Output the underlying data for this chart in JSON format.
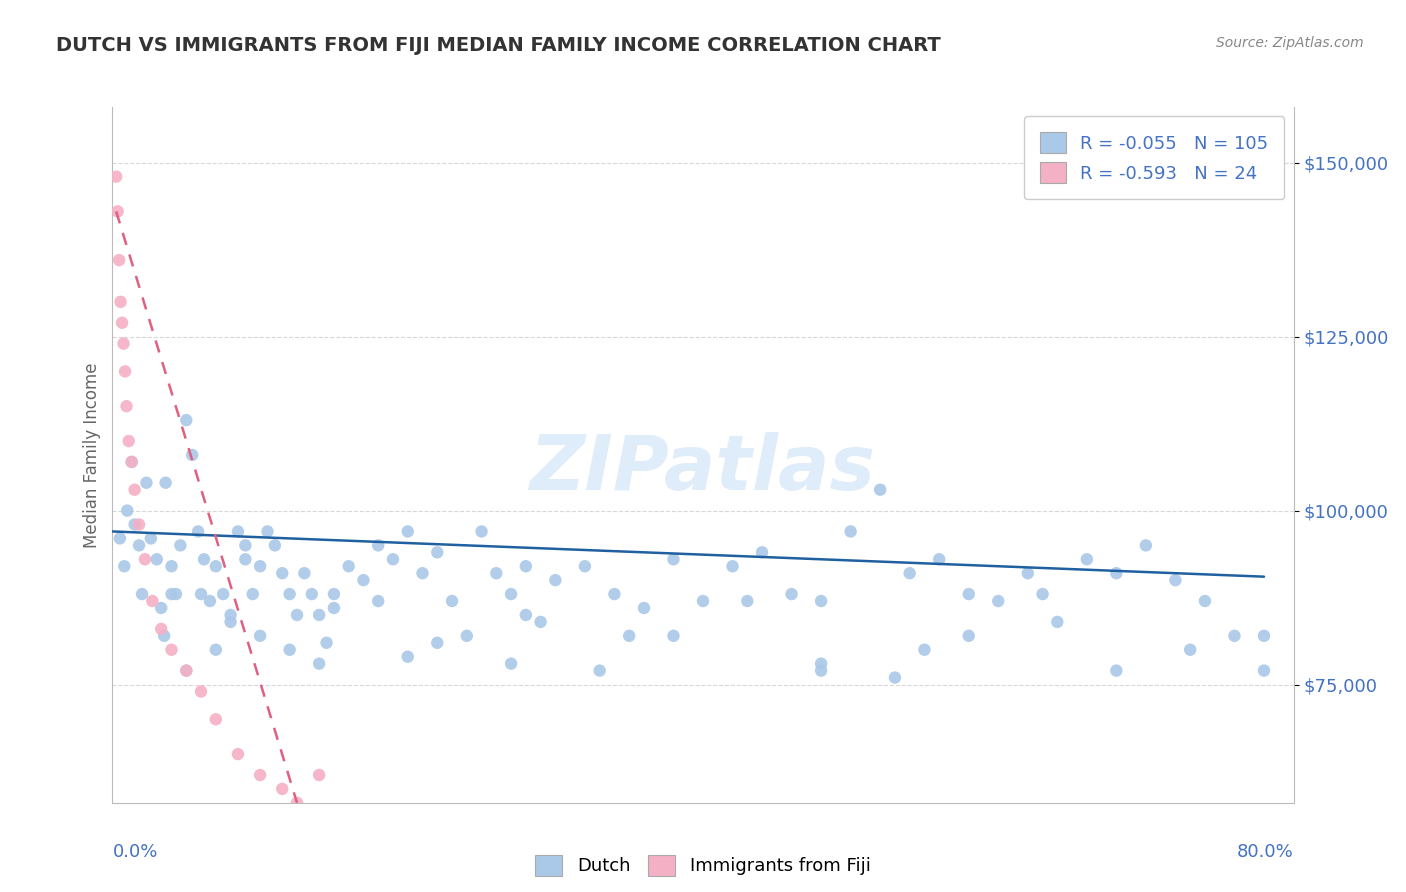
{
  "title": "DUTCH VS IMMIGRANTS FROM FIJI MEDIAN FAMILY INCOME CORRELATION CHART",
  "source": "Source: ZipAtlas.com",
  "ylabel": "Median Family Income",
  "watermark": "ZIPatlas",
  "xlim": [
    0.0,
    80.0
  ],
  "ylim": [
    58000,
    158000
  ],
  "yticks": [
    75000,
    100000,
    125000,
    150000
  ],
  "ytick_labels": [
    "$75,000",
    "$100,000",
    "$125,000",
    "$150,000"
  ],
  "dutch_color": "#aac8e8",
  "fiji_color": "#f4b0c4",
  "dutch_line_color": "#2060a0",
  "fiji_line_color": "#e06080",
  "legend_R1": "-0.055",
  "legend_N1": "105",
  "legend_R2": "-0.593",
  "legend_N2": "24",
  "background_color": "#ffffff",
  "grid_color": "#d8d8d8",
  "title_color": "#333333",
  "axis_label_color": "#666666",
  "tick_label_color": "#4472c4",
  "source_color": "#888888",
  "dutch_scatter_x": [
    0.5,
    0.8,
    1.0,
    1.3,
    1.5,
    1.8,
    2.0,
    2.3,
    2.6,
    3.0,
    3.3,
    3.6,
    4.0,
    4.3,
    4.6,
    5.0,
    5.4,
    5.8,
    6.2,
    6.6,
    7.0,
    7.5,
    8.0,
    8.5,
    9.0,
    9.5,
    10.0,
    10.5,
    11.0,
    11.5,
    12.0,
    12.5,
    13.0,
    13.5,
    14.0,
    14.5,
    15.0,
    16.0,
    17.0,
    18.0,
    19.0,
    20.0,
    21.0,
    22.0,
    23.0,
    24.0,
    25.0,
    26.0,
    27.0,
    28.0,
    29.0,
    30.0,
    32.0,
    34.0,
    36.0,
    38.0,
    40.0,
    42.0,
    44.0,
    46.0,
    48.0,
    50.0,
    52.0,
    54.0,
    56.0,
    58.0,
    60.0,
    62.0,
    64.0,
    66.0,
    68.0,
    70.0,
    72.0,
    74.0,
    76.0,
    78.0,
    3.5,
    6.0,
    9.0,
    12.0,
    15.0,
    18.0,
    22.0,
    27.0,
    33.0,
    38.0,
    43.0,
    48.0,
    53.0,
    58.0,
    63.0,
    68.0,
    73.0,
    78.0,
    4.0,
    8.0,
    55.0,
    48.0,
    35.0,
    28.0,
    20.0,
    14.0,
    10.0,
    7.0,
    5.0
  ],
  "dutch_scatter_y": [
    96000,
    92000,
    100000,
    107000,
    98000,
    95000,
    88000,
    104000,
    96000,
    93000,
    86000,
    104000,
    92000,
    88000,
    95000,
    113000,
    108000,
    97000,
    93000,
    87000,
    92000,
    88000,
    84000,
    97000,
    93000,
    88000,
    92000,
    97000,
    95000,
    91000,
    88000,
    85000,
    91000,
    88000,
    85000,
    81000,
    86000,
    92000,
    90000,
    87000,
    93000,
    97000,
    91000,
    94000,
    87000,
    82000,
    97000,
    91000,
    88000,
    92000,
    84000,
    90000,
    92000,
    88000,
    86000,
    93000,
    87000,
    92000,
    94000,
    88000,
    87000,
    97000,
    103000,
    91000,
    93000,
    88000,
    87000,
    91000,
    84000,
    93000,
    91000,
    95000,
    90000,
    87000,
    82000,
    77000,
    82000,
    88000,
    95000,
    80000,
    88000,
    95000,
    81000,
    78000,
    77000,
    82000,
    87000,
    78000,
    76000,
    82000,
    88000,
    77000,
    80000,
    82000,
    88000,
    85000,
    80000,
    77000,
    82000,
    85000,
    79000,
    78000,
    82000,
    80000,
    77000
  ],
  "fiji_scatter_x": [
    0.25,
    0.35,
    0.45,
    0.55,
    0.65,
    0.75,
    0.85,
    0.95,
    1.1,
    1.3,
    1.5,
    1.8,
    2.2,
    2.7,
    3.3,
    4.0,
    5.0,
    6.0,
    7.0,
    8.5,
    10.0,
    11.5,
    12.5,
    14.0
  ],
  "fiji_scatter_y": [
    148000,
    143000,
    136000,
    130000,
    127000,
    124000,
    120000,
    115000,
    110000,
    107000,
    103000,
    98000,
    93000,
    87000,
    83000,
    80000,
    77000,
    74000,
    70000,
    65000,
    62000,
    60000,
    58000,
    62000
  ],
  "dutch_trend_x": [
    0.0,
    78.0
  ],
  "dutch_trend_y": [
    97000,
    90500
  ],
  "fiji_trend_x": [
    0.25,
    12.5
  ],
  "fiji_trend_y": [
    143000,
    58000
  ]
}
